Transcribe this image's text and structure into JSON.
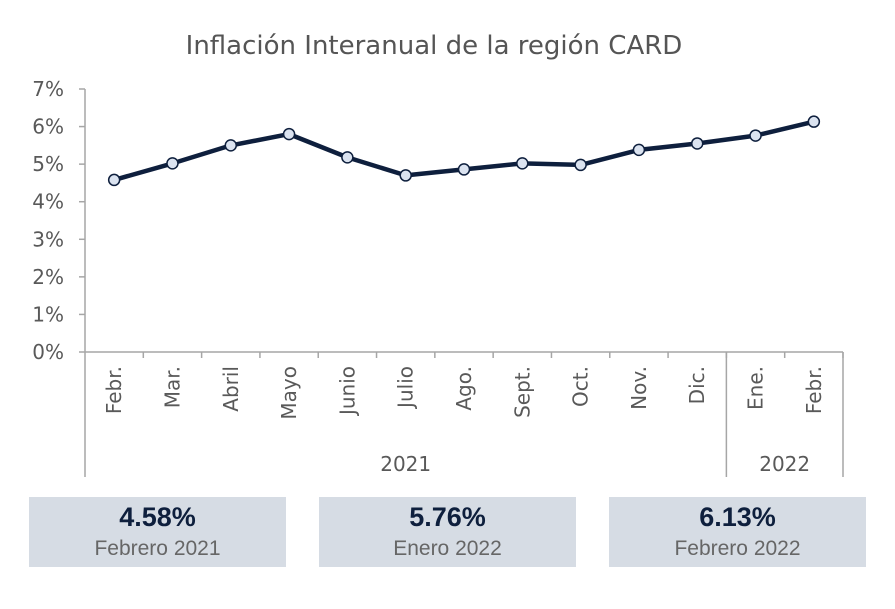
{
  "chart_data": {
    "type": "line",
    "title": "Inflación Interanual de la región CARD",
    "categories": [
      "Febr.",
      "Mar.",
      "Abril",
      "Mayo",
      "Junio",
      "Julio",
      "Ago.",
      "Sept.",
      "Oct.",
      "Nov.",
      "Dic.",
      "Ene.",
      "Febr."
    ],
    "groups": [
      {
        "label": "2021",
        "count": 11
      },
      {
        "label": "2022",
        "count": 2
      }
    ],
    "values": [
      4.58,
      5.02,
      5.5,
      5.8,
      5.18,
      4.7,
      4.86,
      5.02,
      4.98,
      5.38,
      5.55,
      5.76,
      6.13
    ],
    "yticks": [
      "0%",
      "1%",
      "2%",
      "3%",
      "4%",
      "5%",
      "6%",
      "7%"
    ],
    "ylim": [
      0,
      7
    ],
    "grid": false,
    "line_color": "#0e1f3d",
    "marker_fill": "#dbe3f0"
  },
  "cards": [
    {
      "value": "4.58%",
      "label": "Febrero 2021"
    },
    {
      "value": "5.76%",
      "label": "Enero 2022"
    },
    {
      "value": "6.13%",
      "label": "Febrero 2022"
    }
  ]
}
